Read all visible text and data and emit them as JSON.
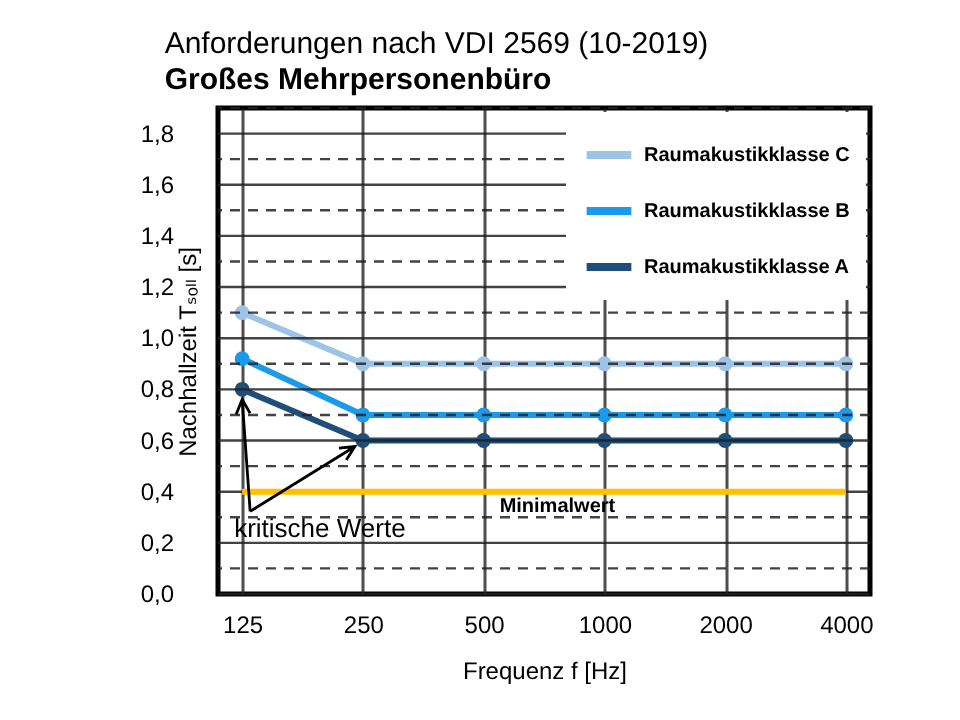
{
  "chart_data": {
    "type": "line",
    "title": "Anforderungen nach VDI 2569 (10-2019)",
    "subtitle": "Großes Mehrpersonenbüro",
    "xlabel": "Frequenz f  [Hz]",
    "ylabel": "Nachhallzeit Tₛₒₗₗ [s]",
    "categories": [
      "125",
      "250",
      "500",
      "1000",
      "2000",
      "4000"
    ],
    "series": [
      {
        "name": "Raumakustikklasse C",
        "color": "#9dc3e6",
        "values": [
          1.1,
          0.9,
          0.9,
          0.9,
          0.9,
          0.9
        ]
      },
      {
        "name": "Raumakustikklasse B",
        "color": "#1a9ae8",
        "values": [
          0.92,
          0.7,
          0.7,
          0.7,
          0.7,
          0.7
        ]
      },
      {
        "name": "Raumakustikklasse A",
        "color": "#1f4e79",
        "values": [
          0.8,
          0.6,
          0.6,
          0.6,
          0.6,
          0.6
        ]
      }
    ],
    "ylim": [
      0,
      1.9
    ],
    "yticks": [
      {
        "value": 0,
        "label": "0,0"
      },
      {
        "value": 0.1,
        "label": null
      },
      {
        "value": 0.2,
        "label": "0,2"
      },
      {
        "value": 0.3,
        "label": null
      },
      {
        "value": 0.4,
        "label": "0,4"
      },
      {
        "value": 0.5,
        "label": null
      },
      {
        "value": 0.6,
        "label": "0,6"
      },
      {
        "value": 0.7,
        "label": null
      },
      {
        "value": 0.8,
        "label": "0,8"
      },
      {
        "value": 0.9,
        "label": null
      },
      {
        "value": 1.0,
        "label": "1,0"
      },
      {
        "value": 1.1,
        "label": null
      },
      {
        "value": 1.2,
        "label": "1,2"
      },
      {
        "value": 1.3,
        "label": null
      },
      {
        "value": 1.4,
        "label": "1,4"
      },
      {
        "value": 1.5,
        "label": null
      },
      {
        "value": 1.6,
        "label": "1,6"
      },
      {
        "value": 1.7,
        "label": null
      },
      {
        "value": 1.8,
        "label": "1,8"
      },
      {
        "value": 1.9,
        "label": null
      }
    ],
    "ref_lines": [
      {
        "axis": "y",
        "value": 0.4,
        "label": "Minimalwert",
        "color": "#ffc000"
      }
    ],
    "annotations": [
      {
        "text": "kritische Werte",
        "x": "125",
        "y": 0.8
      }
    ],
    "grid": true,
    "legend": "top right",
    "marker": "circle",
    "line_style": "solid"
  }
}
